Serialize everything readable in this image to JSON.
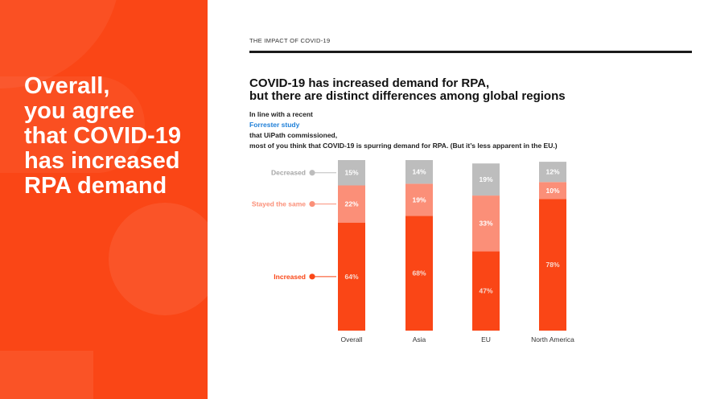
{
  "slide": {
    "headline": [
      "Overall,",
      "you agree",
      "that COVID-19",
      "has increased",
      "RPA demand"
    ],
    "section_label": "THE IMPACT OF COVID-19",
    "title_lines": [
      "COVID-19 has increased demand for RPA,",
      "but there are distinct differences among global regions"
    ],
    "subtitle": {
      "line1_before": "In line with a recent ",
      "line1_link": "Forrester study",
      "line1_after": " that UiPath commissioned,",
      "line2": "most of you think that COVID-19 is spurring demand for RPA. (But it’s less apparent in the EU.)"
    }
  },
  "colors": {
    "brand": "#fa4616",
    "increased": "#fa4616",
    "stayed": "#fb8f78",
    "decreased": "#bdbdbd",
    "link": "#1e7fd8"
  },
  "chart_data": {
    "type": "bar",
    "stacked": true,
    "categories": [
      "Overall",
      "Asia",
      "EU",
      "North America"
    ],
    "series": [
      {
        "name": "Increased",
        "values": [
          64,
          68,
          47,
          78
        ],
        "labels": [
          "64%",
          "68%",
          "47%",
          "78%"
        ],
        "color": "#fa4616",
        "label_color": "#f8d9cf"
      },
      {
        "name": "Stayed the same",
        "values": [
          22,
          19,
          33,
          10
        ],
        "labels": [
          "22%",
          "19%",
          "33%",
          "10%"
        ],
        "color": "#fb8f78",
        "label_color": "#ffffff"
      },
      {
        "name": "Decreased",
        "values": [
          15,
          14,
          19,
          12
        ],
        "labels": [
          "15%",
          "14%",
          "19%",
          "12%"
        ],
        "color": "#bdbdbd",
        "label_color": "#ffffff"
      }
    ],
    "legend_entries": [
      {
        "name": "Decreased",
        "color": "#a6a6a6",
        "dot": "#bdbdbd"
      },
      {
        "name": "Stayed the same",
        "color": "#fb8f78",
        "dot": "#fb8f78"
      },
      {
        "name": "Increased",
        "color": "#fa4616",
        "dot": "#fa4616"
      }
    ],
    "legend_position": "left",
    "ylim": [
      0,
      101
    ],
    "grid": false
  }
}
